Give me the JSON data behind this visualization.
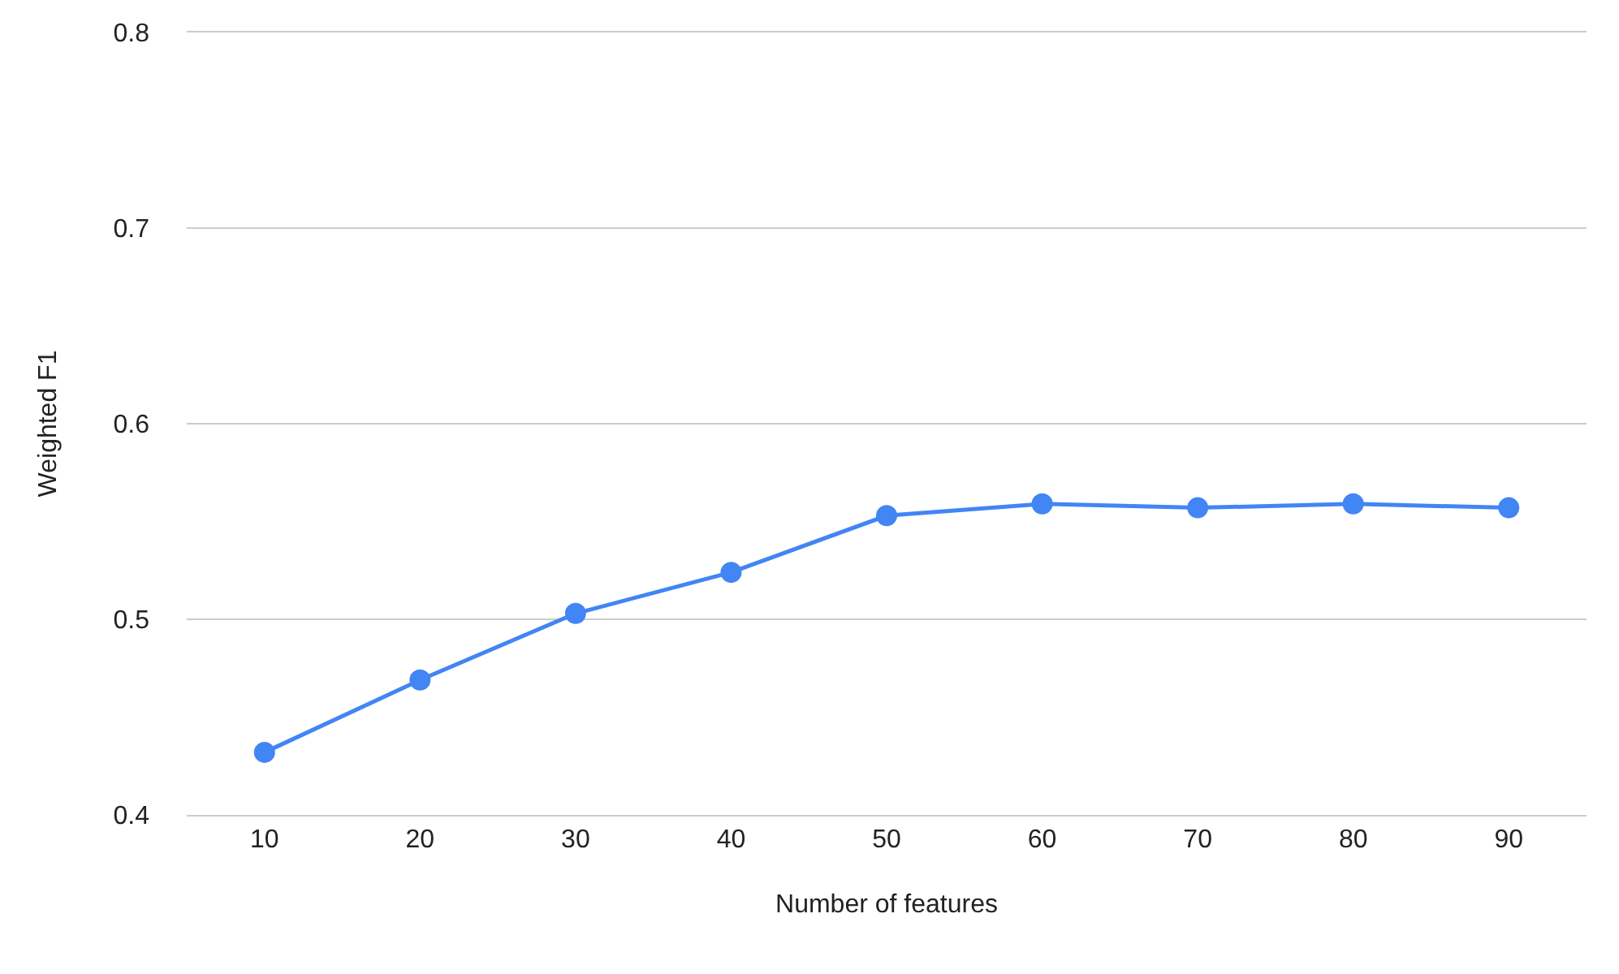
{
  "chart_data": {
    "type": "line",
    "xlabel": "Number of features",
    "ylabel": "Weighted F1",
    "categories": [
      "10",
      "20",
      "30",
      "40",
      "50",
      "60",
      "70",
      "80",
      "90"
    ],
    "series": [
      {
        "color": "#4285f4",
        "values": [
          0.432,
          0.469,
          0.503,
          0.524,
          0.553,
          0.559,
          0.557,
          0.559,
          0.557
        ]
      }
    ],
    "ylim": [
      0.4,
      0.8
    ],
    "yticks": [
      0.4,
      0.5,
      0.6,
      0.7,
      0.8
    ],
    "grid": "y",
    "marker": "circle",
    "line_style": "solid"
  }
}
